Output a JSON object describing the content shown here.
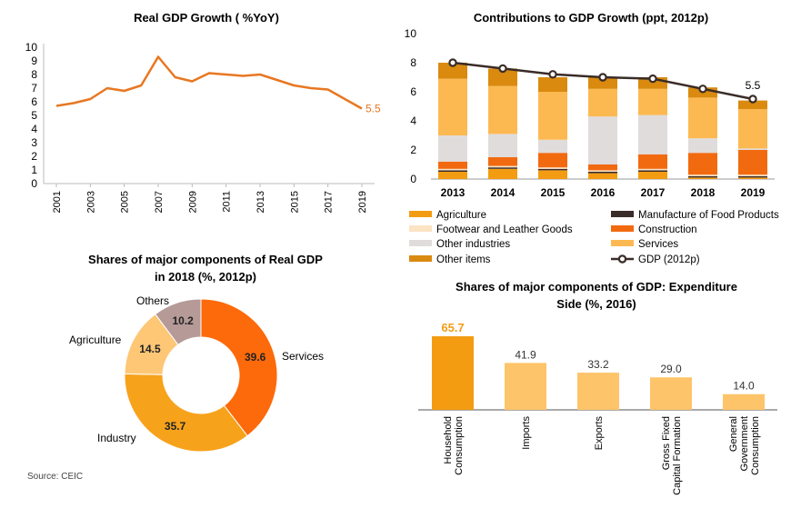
{
  "source_note": "Source: CEIC",
  "chart_data": [
    {
      "id": "gdp-growth",
      "type": "line",
      "title": "Real GDP Growth ( %YoY)",
      "x": [
        2001,
        2002,
        2003,
        2004,
        2005,
        2006,
        2007,
        2008,
        2009,
        2010,
        2011,
        2012,
        2013,
        2014,
        2015,
        2016,
        2017,
        2018,
        2019
      ],
      "x_tick_labels": [
        "2001",
        "2003",
        "2005",
        "2007",
        "2009",
        "2011",
        "2013",
        "2015",
        "2017",
        "2019"
      ],
      "series": [
        {
          "values": [
            5.7,
            5.9,
            6.2,
            7.0,
            6.8,
            7.2,
            9.3,
            7.8,
            7.5,
            8.1,
            8.0,
            7.9,
            8.0,
            7.6,
            7.2,
            7.0,
            6.9,
            6.2,
            5.5
          ],
          "color": "#e87722"
        }
      ],
      "end_label": "5.5",
      "ylim": [
        0,
        10
      ],
      "y_ticks": [
        "0",
        "1",
        "2",
        "3",
        "4",
        "5",
        "6",
        "7",
        "8",
        "9",
        "10"
      ],
      "grid": false
    },
    {
      "id": "gdp-contrib",
      "type": "bar",
      "stacked": true,
      "title": "Contributions to GDP Growth (ppt, 2012p)",
      "categories": [
        "2013",
        "2014",
        "2015",
        "2016",
        "2017",
        "2018",
        "2019"
      ],
      "series": [
        {
          "name": "Agriculture",
          "color": "#f39c12",
          "values": [
            0.5,
            0.7,
            0.6,
            0.4,
            0.5,
            0.1,
            0.1
          ]
        },
        {
          "name": "Manufacture of Food Products",
          "color": "#3a2c28",
          "values": [
            0.1,
            0.1,
            0.1,
            0.1,
            0.1,
            0.1,
            0.1
          ]
        },
        {
          "name": "Footwear and Leather Goods",
          "color": "#fbe3c3",
          "values": [
            0.1,
            0.1,
            0.1,
            0.1,
            0.1,
            0.1,
            0.1
          ]
        },
        {
          "name": "Construction",
          "color": "#f26a10",
          "values": [
            0.5,
            0.6,
            1.0,
            0.4,
            1.0,
            1.5,
            1.7
          ]
        },
        {
          "name": "Other industries",
          "color": "#e0dcdc",
          "values": [
            1.8,
            1.6,
            0.9,
            3.3,
            2.7,
            1.0,
            0.1
          ]
        },
        {
          "name": "Services",
          "color": "#fdb951",
          "values": [
            3.9,
            3.3,
            3.3,
            1.9,
            1.8,
            2.8,
            2.7
          ]
        },
        {
          "name": "Other items",
          "color": "#d98a0f",
          "values": [
            1.1,
            1.2,
            1.0,
            0.8,
            0.8,
            0.7,
            0.6
          ]
        }
      ],
      "line": {
        "name": "GDP (2012p)",
        "values": [
          8.0,
          7.6,
          7.2,
          7.0,
          6.9,
          6.2,
          5.5
        ],
        "color": "#3a2c28"
      },
      "end_label": "5.5",
      "ylim": [
        0,
        10
      ],
      "y_ticks": [
        "0",
        "2",
        "4",
        "6",
        "8",
        "10"
      ],
      "legend_placement": "bottom"
    },
    {
      "id": "gdp-shares",
      "type": "pie",
      "donut": true,
      "title_lines": [
        "Shares of major components of Real GDP",
        "in 2018 (%, 2012p)"
      ],
      "slices": [
        {
          "label": "Services",
          "value": 39.6,
          "display": "39.6",
          "color": "#fd6a0b"
        },
        {
          "label": "Industry",
          "value": 35.7,
          "display": "35.7",
          "color": "#f7a21b"
        },
        {
          "label": "Agriculture",
          "value": 14.5,
          "display": "14.5",
          "color": "#fdc776"
        },
        {
          "label": "Others",
          "value": 10.2,
          "display": "10.2",
          "color": "#b59a98"
        }
      ]
    },
    {
      "id": "expenditure",
      "type": "bar",
      "title_lines": [
        "Shares of major components of GDP: Expenditure",
        "Side (%, 2016)"
      ],
      "categories": [
        [
          "Household",
          "Consumption"
        ],
        [
          "Imports"
        ],
        [
          "Exports"
        ],
        [
          "Gross Fixed",
          "Capital Formation"
        ],
        [
          "General",
          "Government",
          "Consumption"
        ]
      ],
      "values": [
        65.7,
        41.9,
        33.2,
        29.0,
        14.0
      ],
      "labels": [
        "65.7",
        "41.9",
        "33.2",
        "29.0",
        "14.0"
      ],
      "colors": [
        "#f39c12",
        "#fdc46a",
        "#fdc46a",
        "#fdc46a",
        "#fdc46a"
      ],
      "highlight_label_color": "#f39c12",
      "ylim": [
        0,
        70
      ]
    }
  ]
}
